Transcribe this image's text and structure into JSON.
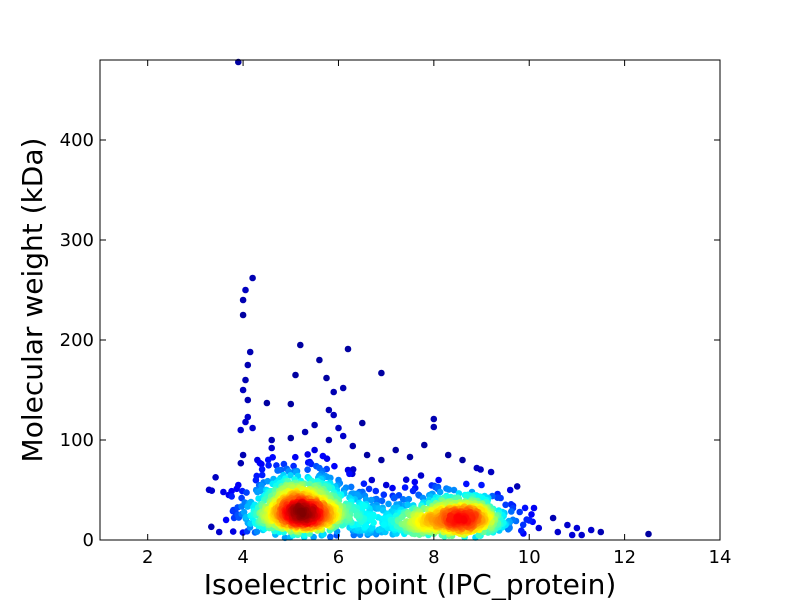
{
  "chart_data": {
    "type": "scatter",
    "title": "",
    "xlabel": "Isoelectric point (IPC_protein)",
    "ylabel": "Molecular weight (kDa)",
    "xlim": [
      1,
      14
    ],
    "ylim": [
      0,
      480
    ],
    "xticks": [
      2,
      4,
      6,
      8,
      10,
      12,
      14
    ],
    "yticks": [
      0,
      100,
      200,
      300,
      400
    ],
    "xtick_labels": [
      "2",
      "4",
      "6",
      "8",
      "10",
      "12",
      "14"
    ],
    "ytick_labels": [
      "0",
      "100",
      "200",
      "300",
      "400"
    ],
    "grid": false,
    "legend": "none",
    "color_encoding": "point density (blue = low, red = high)",
    "colors": {
      "low_density": "#0000aa",
      "mid_density": "#22ccee",
      "high_density": "#cc0000"
    },
    "clusters": [
      {
        "center_pI": 5.2,
        "center_mw": 28
      },
      {
        "center_pI": 8.5,
        "center_mw": 20
      }
    ],
    "points": [
      [
        3.9,
        478
      ],
      [
        4.2,
        262
      ],
      [
        4.05,
        250
      ],
      [
        4.0,
        240
      ],
      [
        4.0,
        225
      ],
      [
        4.15,
        188
      ],
      [
        5.2,
        195
      ],
      [
        6.2,
        191
      ],
      [
        5.6,
        180
      ],
      [
        6.9,
        167
      ],
      [
        5.75,
        162
      ],
      [
        5.1,
        165
      ],
      [
        4.1,
        175
      ],
      [
        4.05,
        160
      ],
      [
        6.1,
        152
      ],
      [
        5.9,
        148
      ],
      [
        4.0,
        150
      ],
      [
        4.1,
        140
      ],
      [
        5.0,
        136
      ],
      [
        4.5,
        137
      ],
      [
        5.8,
        130
      ],
      [
        5.9,
        125
      ],
      [
        6.5,
        117
      ],
      [
        8.0,
        121
      ],
      [
        8.0,
        113
      ],
      [
        4.1,
        123
      ],
      [
        4.05,
        118
      ],
      [
        4.2,
        112
      ],
      [
        3.95,
        110
      ],
      [
        5.5,
        115
      ],
      [
        6.0,
        112
      ],
      [
        5.3,
        108
      ],
      [
        6.1,
        104
      ],
      [
        5.8,
        100
      ],
      [
        5.0,
        102
      ],
      [
        4.6,
        92
      ],
      [
        7.2,
        90
      ],
      [
        6.6,
        85
      ],
      [
        6.9,
        80
      ],
      [
        7.5,
        83
      ],
      [
        8.3,
        85
      ],
      [
        8.6,
        80
      ],
      [
        8.9,
        72
      ],
      [
        4.0,
        85
      ],
      [
        4.3,
        80
      ],
      [
        5.5,
        90
      ],
      [
        6.3,
        94
      ],
      [
        7.8,
        95
      ],
      [
        9.2,
        68
      ],
      [
        9.6,
        50
      ],
      [
        10.1,
        32
      ],
      [
        10.5,
        22
      ],
      [
        10.8,
        15
      ],
      [
        11.0,
        12
      ],
      [
        11.3,
        10
      ],
      [
        11.5,
        8
      ],
      [
        12.5,
        6
      ],
      [
        11.1,
        5
      ],
      [
        3.5,
        8
      ],
      [
        3.7,
        45
      ],
      [
        3.9,
        55
      ],
      [
        3.8,
        30
      ],
      [
        4.4,
        65
      ],
      [
        4.8,
        70
      ],
      [
        6.7,
        60
      ],
      [
        7.0,
        55
      ],
      [
        7.6,
        58
      ],
      [
        9.4,
        42
      ],
      [
        9.8,
        28
      ],
      [
        10.2,
        12
      ],
      [
        10.6,
        8
      ],
      [
        10.9,
        5
      ],
      [
        7.3,
        30
      ],
      [
        6.8,
        35
      ],
      [
        7.1,
        20
      ],
      [
        6.5,
        22
      ],
      [
        6.0,
        60
      ],
      [
        5.6,
        72
      ],
      [
        4.3,
        48
      ],
      [
        9.0,
        55
      ],
      [
        8.1,
        60
      ],
      [
        8.8,
        48
      ],
      [
        4.6,
        100
      ],
      [
        5.4,
        78
      ],
      [
        6.4,
        45
      ],
      [
        7.9,
        40
      ],
      [
        9.5,
        15
      ],
      [
        10.0,
        20
      ],
      [
        4.9,
        55
      ],
      [
        6.2,
        70
      ]
    ]
  }
}
